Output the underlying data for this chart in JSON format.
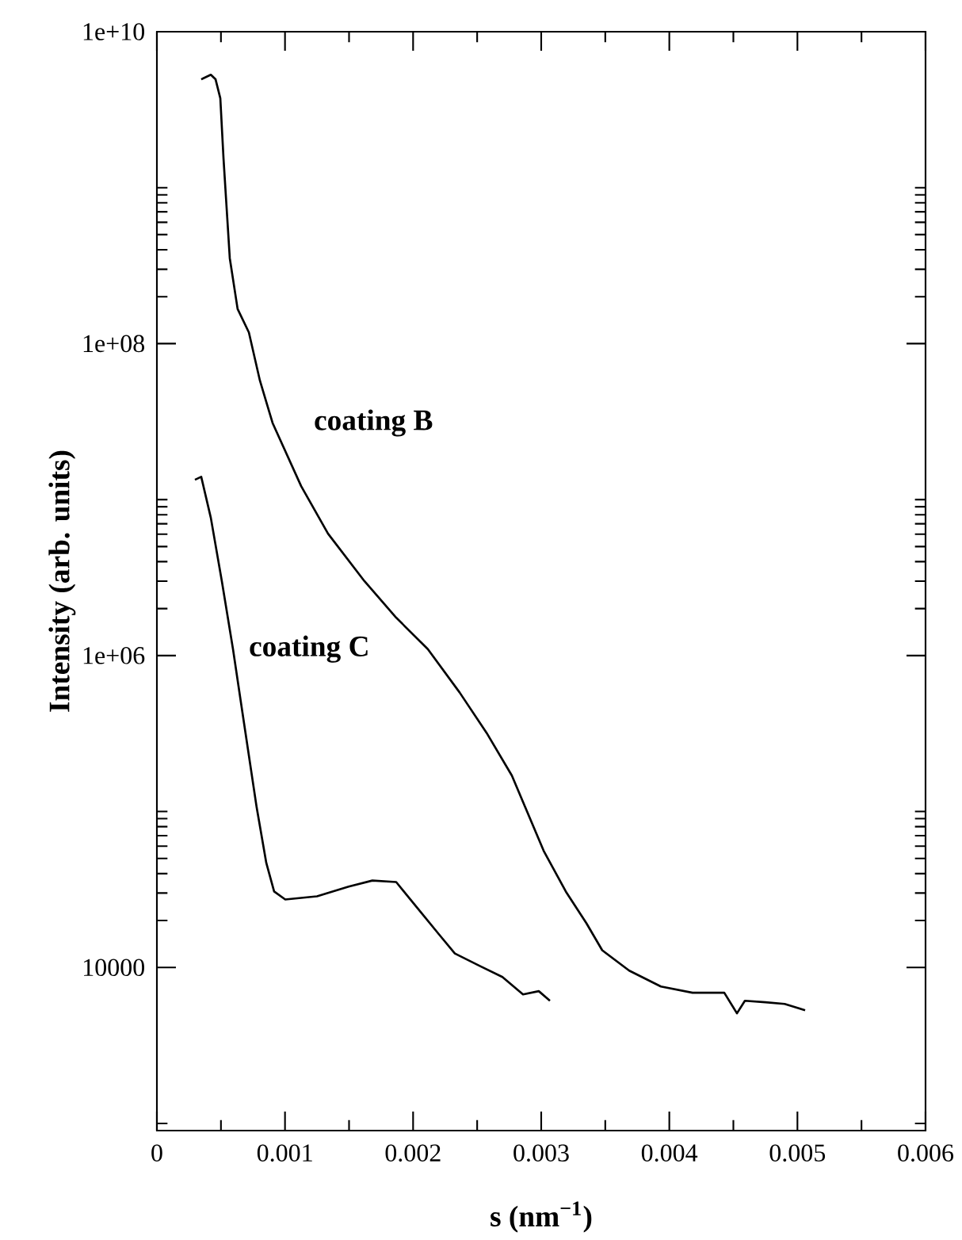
{
  "chart_data": {
    "type": "line",
    "xlabel": "s (nm$^{−1}$)",
    "ylabel": "Intensity (arb. units)",
    "log": "y",
    "marker": "none",
    "line_style": "solid",
    "xlim": [
      0,
      0.006
    ],
    "ylim": [
      900,
      10000000000
    ],
    "xticks": [
      0,
      {
        "value": 0.0005,
        "label": null
      },
      0.001,
      {
        "value": 0.0015,
        "label": null
      },
      0.002,
      {
        "value": 0.0025,
        "label": null
      },
      0.003,
      {
        "value": 0.0035,
        "label": null
      },
      0.004,
      {
        "value": 0.0045,
        "label": null
      },
      0.005,
      {
        "value": 0.0055,
        "label": null
      },
      0.006
    ],
    "yticks": [
      {
        "value": 1000,
        "label": null
      },
      10000,
      {
        "value": 20000,
        "label": null
      },
      {
        "value": 30000,
        "label": null
      },
      {
        "value": 40000,
        "label": null
      },
      {
        "value": 50000,
        "label": null
      },
      {
        "value": 60000,
        "label": null
      },
      {
        "value": 70000,
        "label": null
      },
      {
        "value": 80000,
        "label": null
      },
      {
        "value": 90000,
        "label": null
      },
      {
        "value": 100000,
        "label": null
      },
      {
        "value": 1000000,
        "label": "1e+06"
      },
      {
        "value": 2000000,
        "label": null
      },
      {
        "value": 3000000,
        "label": null
      },
      {
        "value": 4000000,
        "label": null
      },
      {
        "value": 5000000,
        "label": null
      },
      {
        "value": 6000000,
        "label": null
      },
      {
        "value": 7000000,
        "label": null
      },
      {
        "value": 8000000,
        "label": null
      },
      {
        "value": 9000000,
        "label": null
      },
      {
        "value": 10000000,
        "label": null
      },
      {
        "value": 100000000,
        "label": "1e+08"
      },
      {
        "value": 200000000,
        "label": null
      },
      {
        "value": 300000000,
        "label": null
      },
      {
        "value": 400000000,
        "label": null
      },
      {
        "value": 500000000,
        "label": null
      },
      {
        "value": 600000000,
        "label": null
      },
      {
        "value": 700000000,
        "label": null
      },
      {
        "value": 800000000,
        "label": null
      },
      {
        "value": 900000000,
        "label": null
      },
      {
        "value": 1000000000,
        "label": null
      },
      {
        "value": 10000000000,
        "label": "1e+10"
      }
    ],
    "series": [
      {
        "name": "coating B",
        "color": "#000000",
        "x": [
          0.000346,
          0.000421,
          0.000458,
          0.000495,
          0.00052,
          0.000569,
          0.00063,
          0.000718,
          0.000804,
          0.000903,
          0.001126,
          0.001336,
          0.00162,
          0.001868,
          0.002115,
          0.002363,
          0.002573,
          0.002771,
          0.003019,
          0.003192,
          0.003353,
          0.003476,
          0.003687,
          0.003934,
          0.004181,
          0.004429,
          0.004528,
          0.00459,
          0.00475,
          0.0049,
          0.00506
        ],
        "values": [
          4950000000,
          5300000000,
          4950000000,
          3750000000,
          1540000000,
          353000000,
          167000000,
          118000000,
          58000000,
          31000000,
          12200000,
          6050000,
          3000000,
          1750000,
          1100000,
          580000,
          320000,
          170000,
          56000,
          30700,
          19200,
          12900,
          9550,
          7550,
          6890,
          6890,
          5080,
          6120,
          5980,
          5840,
          5320
        ]
      },
      {
        "name": "coating C",
        "color": "#000000",
        "x": [
          0.000297,
          0.000346,
          0.000421,
          0.000507,
          0.000594,
          0.000668,
          0.000779,
          0.000854,
          0.000915,
          0.001002,
          0.00125,
          0.001497,
          0.001682,
          0.001868,
          0.002029,
          0.002202,
          0.002326,
          0.002524,
          0.002697,
          0.002858,
          0.002981,
          0.003068
        ],
        "values": [
          13400000,
          14000000,
          7640000,
          3000000,
          1100000,
          430000,
          106000,
          46800,
          30700,
          27300,
          28600,
          33000,
          36100,
          35300,
          24300,
          16300,
          12300,
          10200,
          8690,
          6720,
          7050,
          6120
        ]
      }
    ]
  }
}
